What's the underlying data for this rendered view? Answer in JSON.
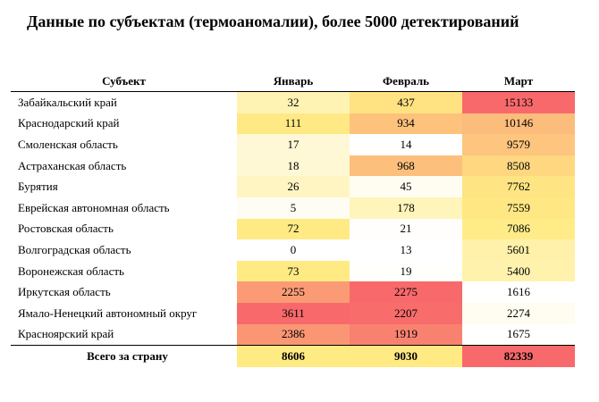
{
  "title": "Данные по субъектам (термоаномалии), более 5000 детектирований",
  "table": {
    "columns": [
      "Субъект",
      "Январь",
      "Февраль",
      "Март"
    ],
    "rows": [
      [
        "Забайкальский край",
        32,
        437,
        15133
      ],
      [
        "Краснодарский край",
        111,
        934,
        10146
      ],
      [
        "Смоленская область",
        17,
        14,
        9579
      ],
      [
        "Астраханская область",
        18,
        968,
        8508
      ],
      [
        "Бурятия",
        26,
        45,
        7762
      ],
      [
        "Еврейская автономная область",
        5,
        178,
        7559
      ],
      [
        "Ростовская область",
        72,
        21,
        7086
      ],
      [
        "Волгоградская область",
        0,
        13,
        5601
      ],
      [
        "Воронежская область",
        73,
        19,
        5400
      ],
      [
        "Иркутская область",
        2255,
        2275,
        1616
      ],
      [
        "Ямало-Ненецкий автономный округ",
        3611,
        2207,
        2274
      ],
      [
        "Красноярский край",
        2386,
        1919,
        1675
      ]
    ],
    "total": [
      "Всего за страну",
      8606,
      9030,
      82339
    ]
  },
  "color_scale": {
    "min": "#ffffff",
    "mid": "#ffeb84",
    "max": "#f8696b"
  }
}
